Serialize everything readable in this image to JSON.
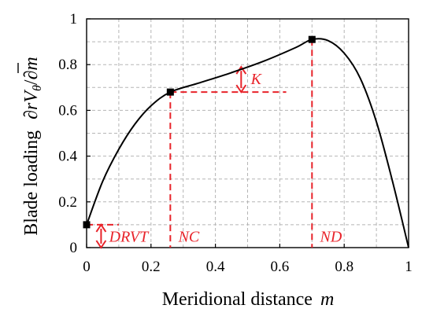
{
  "chart_data": {
    "type": "line",
    "xlabel": "Meridional distance",
    "xlabel_symbol": "m",
    "ylabel": "Blade loading",
    "ylabel_symbol_parts": {
      "partial": "∂",
      "r": "r",
      "V": "V",
      "theta": "θ",
      "slash": "/∂",
      "m": "m"
    },
    "xlim": [
      0,
      1
    ],
    "ylim": [
      0,
      1
    ],
    "xticks": [
      "0",
      "0.2",
      "0.4",
      "0.6",
      "0.8",
      "1"
    ],
    "yticks": [
      "0",
      "0.2",
      "0.4",
      "0.6",
      "0.8",
      "1"
    ],
    "grid": true,
    "curve": {
      "x": [
        0,
        0.05,
        0.1,
        0.15,
        0.2,
        0.26,
        0.35,
        0.45,
        0.55,
        0.65,
        0.7,
        0.75,
        0.8,
        0.85,
        0.9,
        0.95,
        1.0
      ],
      "y": [
        0.1,
        0.29,
        0.43,
        0.54,
        0.62,
        0.68,
        0.72,
        0.765,
        0.815,
        0.875,
        0.91,
        0.905,
        0.85,
        0.74,
        0.55,
        0.29,
        0.0
      ]
    },
    "control_points": [
      {
        "x": 0,
        "y": 0.1
      },
      {
        "x": 0.26,
        "y": 0.68
      },
      {
        "x": 0.7,
        "y": 0.91
      }
    ],
    "annotations": {
      "drvt": "DRVT",
      "nc": "NC",
      "nd": "ND",
      "k": "K"
    },
    "colors": {
      "curve": "#000000",
      "annotation": "#e8232a",
      "grid": "#b5b5b5"
    }
  }
}
